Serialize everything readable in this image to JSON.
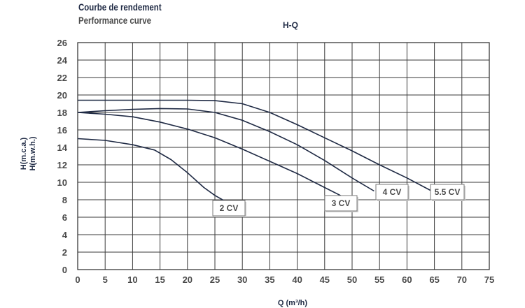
{
  "header": {
    "title_fr": "Courbe de rendement",
    "title_en": "Performance curve"
  },
  "chart_data": {
    "type": "line",
    "subtitle": "H-Q",
    "xlabel": "Q (m³/h)",
    "ylabel": [
      "H(m.c.a.)",
      "H(m.w.h.)"
    ],
    "xlim": [
      0,
      75
    ],
    "ylim": [
      0,
      26
    ],
    "xticks": [
      0,
      5,
      10,
      15,
      20,
      25,
      30,
      35,
      40,
      45,
      50,
      55,
      60,
      65,
      70,
      75
    ],
    "yticks": [
      0,
      2,
      4,
      6,
      8,
      10,
      12,
      14,
      16,
      18,
      20,
      22,
      24,
      26
    ],
    "grid": true,
    "legend": "none",
    "series": [
      {
        "name": "2 CV",
        "x": [
          0,
          5,
          10,
          14,
          17,
          20,
          23,
          25,
          27.5
        ],
        "y": [
          15,
          14.8,
          14.3,
          13.7,
          12.6,
          11.1,
          9.4,
          8.5,
          7.6
        ],
        "color": "#1f2a44"
      },
      {
        "name": "3 CV",
        "x": [
          0,
          5,
          10,
          15,
          20,
          25,
          30,
          35,
          40,
          45,
          48.5
        ],
        "y": [
          18,
          17.8,
          17.5,
          16.9,
          16.1,
          15.1,
          13.8,
          12.4,
          11.0,
          9.4,
          8.3
        ],
        "color": "#1f2a44"
      },
      {
        "name": "4 CV",
        "x": [
          0,
          5,
          10,
          15,
          20,
          25,
          30,
          35,
          40,
          45,
          50,
          54
        ],
        "y": [
          18,
          18.2,
          18.35,
          18.45,
          18.4,
          18.0,
          17.1,
          15.8,
          14.3,
          12.5,
          10.5,
          9.0
        ],
        "color": "#1f2a44"
      },
      {
        "name": "5.5 CV",
        "x": [
          0,
          5,
          10,
          15,
          20,
          25,
          30,
          35,
          40,
          45,
          50,
          55,
          60,
          64.5
        ],
        "y": [
          19.4,
          19.4,
          19.4,
          19.4,
          19.4,
          19.35,
          19.0,
          18.0,
          16.6,
          15.1,
          13.6,
          12.0,
          10.5,
          9.0
        ],
        "color": "#1f2a44"
      }
    ],
    "curve_labels": [
      "2 CV",
      "3 CV",
      "4 CV",
      "5.5 CV"
    ]
  }
}
